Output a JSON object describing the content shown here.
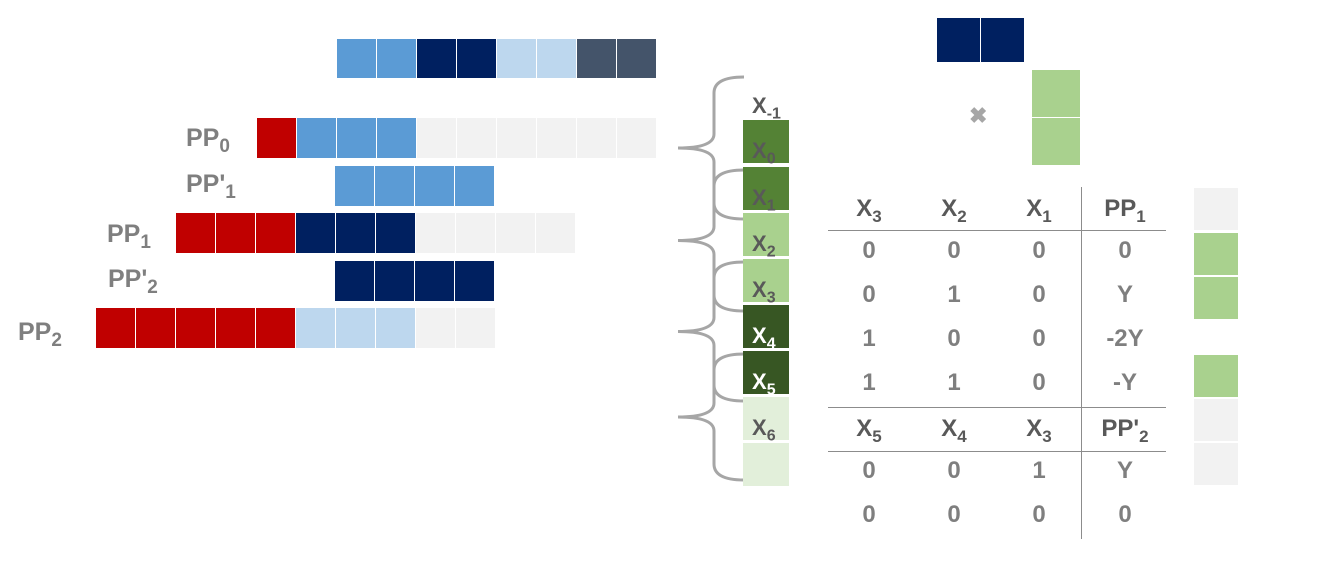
{
  "colors": {
    "red": "#c00000",
    "mid_blue": "#5b9bd5",
    "navy": "#002060",
    "light_blue": "#bdd7ee",
    "slate": "#44546a",
    "empty": "#f2f2f2",
    "green_dark": "#548235",
    "green_darker": "#375623",
    "green_light": "#a9d18e",
    "green_pale": "#e2efda"
  },
  "multiplicand_row": [
    "mid_blue",
    "mid_blue",
    "navy",
    "navy",
    "light_blue",
    "light_blue",
    "slate",
    "slate"
  ],
  "partial_products": [
    {
      "label": "PP",
      "sub": "0",
      "cells": [
        "red",
        "mid_blue",
        "mid_blue",
        "mid_blue",
        "empty",
        "empty",
        "empty",
        "empty",
        "empty",
        "empty"
      ]
    },
    {
      "label": "PP'",
      "sub": "1",
      "cells": [
        "mid_blue",
        "mid_blue",
        "mid_blue",
        "mid_blue"
      ]
    },
    {
      "label": "PP",
      "sub": "1",
      "cells": [
        "red",
        "red",
        "red",
        "navy",
        "navy",
        "navy",
        "empty",
        "empty",
        "empty",
        "empty"
      ]
    },
    {
      "label": "PP'",
      "sub": "2",
      "cells": [
        "navy",
        "navy",
        "navy",
        "navy"
      ]
    },
    {
      "label": "PP",
      "sub": "2",
      "cells": [
        "red",
        "red",
        "red",
        "red",
        "red",
        "light_blue",
        "light_blue",
        "light_blue",
        "empty",
        "empty"
      ]
    }
  ],
  "x_column": [
    {
      "label": "X",
      "sub": "-1",
      "color": ""
    },
    {
      "label": "X",
      "sub": "0",
      "color": "green_dark"
    },
    {
      "label": "X",
      "sub": "1",
      "color": "green_dark"
    },
    {
      "label": "X",
      "sub": "2",
      "color": "green_light"
    },
    {
      "label": "X",
      "sub": "3",
      "color": "green_light"
    },
    {
      "label": "X",
      "sub": "4",
      "color": "green_darker"
    },
    {
      "label": "X",
      "sub": "5",
      "color": "green_darker"
    },
    {
      "label": "X",
      "sub": "6",
      "color": "green_pale"
    },
    {
      "label": "",
      "sub": "",
      "color": "green_pale"
    }
  ],
  "times_symbol": "✖",
  "table": {
    "header1": [
      {
        "t": "X",
        "s": "3"
      },
      {
        "t": "X",
        "s": "2"
      },
      {
        "t": "X",
        "s": "1"
      },
      {
        "t": "PP",
        "s": "1"
      }
    ],
    "rows1": [
      [
        "0",
        "0",
        "0",
        "0"
      ],
      [
        "0",
        "1",
        "0",
        "Y"
      ],
      [
        "1",
        "0",
        "0",
        "-2Y"
      ],
      [
        "1",
        "1",
        "0",
        "-Y"
      ]
    ],
    "header2": [
      {
        "t": "X",
        "s": "5"
      },
      {
        "t": "X",
        "s": "4"
      },
      {
        "t": "X",
        "s": "3"
      },
      {
        "t": "PP'",
        "s": "2"
      }
    ],
    "rows2": [
      [
        "0",
        "0",
        "1",
        "Y"
      ],
      [
        "0",
        "0",
        "0",
        "0"
      ]
    ]
  },
  "side_squares": [
    "empty",
    "green_light",
    "green_light",
    "",
    "green_light",
    "empty",
    "empty"
  ]
}
